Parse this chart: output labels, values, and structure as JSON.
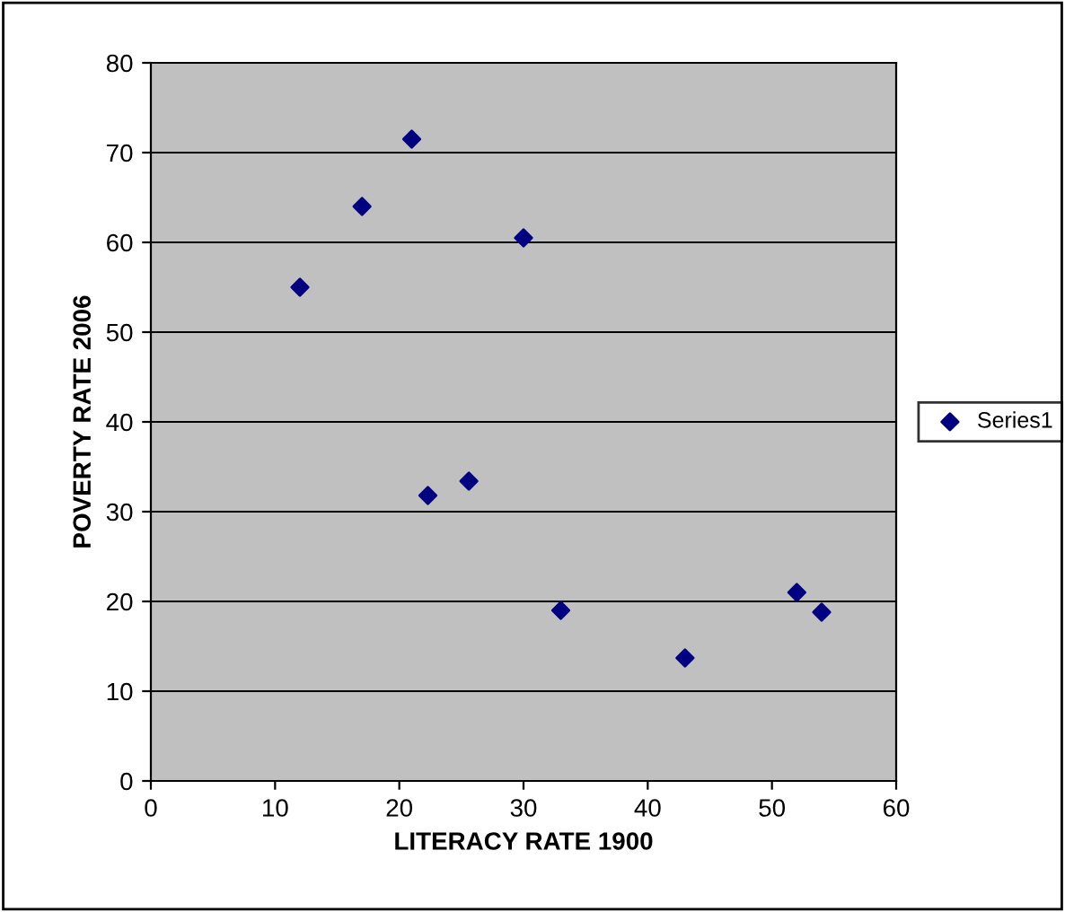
{
  "chart_data": {
    "type": "scatter",
    "xlabel": "LITERACY RATE 1900",
    "ylabel": "POVERTY RATE 2006",
    "series": [
      {
        "name": "Series1",
        "color": "#000080",
        "x": [
          12,
          17,
          21,
          30,
          22.3,
          25.6,
          33,
          43,
          52,
          54
        ],
        "values": [
          55,
          64,
          71.5,
          60.5,
          31.8,
          33.4,
          19,
          13.7,
          21,
          18.8
        ]
      }
    ],
    "xlim": [
      0,
      60
    ],
    "xticks": [
      0,
      10,
      20,
      30,
      40,
      50,
      60
    ],
    "ylim": [
      0,
      80
    ],
    "yticks": [
      0,
      10,
      20,
      30,
      40,
      50,
      60,
      70,
      80
    ],
    "grid": "y",
    "legend": "right",
    "marker": "diamond"
  }
}
